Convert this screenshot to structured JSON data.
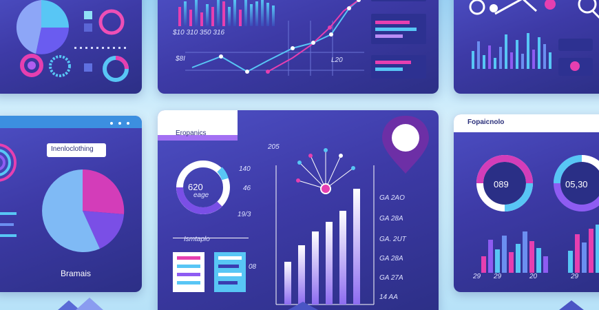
{
  "panels": {
    "top_center": {
      "axis_left": "$10 310 350 316",
      "label_a": "$8I",
      "label_b": "L20"
    },
    "mid_left": {
      "tab_label": "Inenloclothing",
      "caption": "Bramais"
    },
    "mid_center": {
      "header": "Eropanics",
      "donut_value": "620",
      "donut_sub": "eage",
      "label_140": "140",
      "label_46": "46",
      "label_193": "19/3",
      "list_title": "Ismtaplo",
      "year_label": "205",
      "side_labels": [
        "GA 2AO",
        "GA 28A",
        "GA. 2UT",
        "GA 28A",
        "GA 27A",
        "14 AA"
      ],
      "badge_08": "08"
    },
    "mid_right": {
      "header": "Fopaicnolo",
      "gauge_left": "089",
      "gauge_right": "05,30",
      "foot_labels": [
        "29",
        "29",
        "20",
        "29"
      ]
    }
  },
  "colors": {
    "panel_top": "#4d4fc4",
    "panel_bottom": "#2c2f86",
    "accent_pink": "#e63fb0",
    "accent_blue": "#58c6f5",
    "accent_purple": "#8e5cf2"
  }
}
